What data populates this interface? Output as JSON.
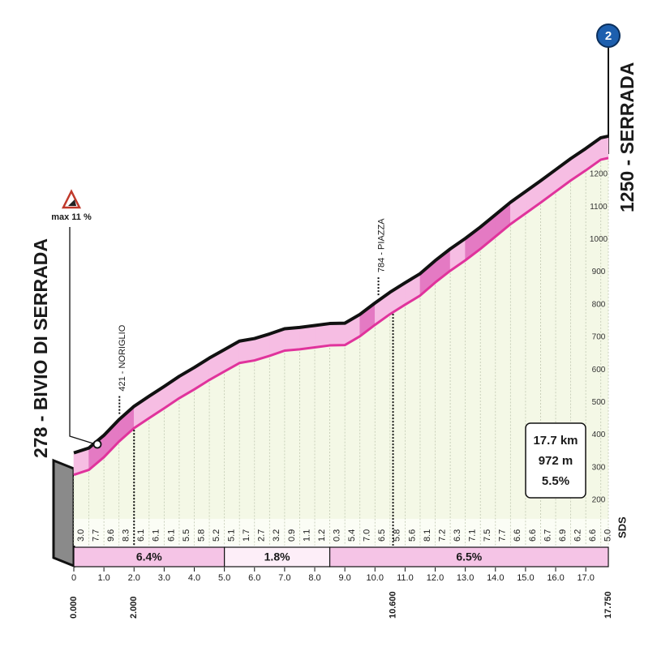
{
  "chart_data": {
    "type": "area",
    "start_label": "278 - BIVIO DI SERRADA",
    "end_label": "1250 - SERRADA",
    "badge": "2",
    "max_gradient_label": "max 11 %",
    "logo": "SDS",
    "x": [
      0,
      0.5,
      1,
      1.5,
      2,
      2.5,
      3,
      3.5,
      4,
      4.5,
      5,
      5.5,
      6,
      6.5,
      7,
      7.5,
      8,
      8.5,
      9,
      9.5,
      10,
      10.5,
      11,
      11.5,
      12,
      12.5,
      13,
      13.5,
      14,
      14.5,
      15,
      15.5,
      16,
      16.5,
      17,
      17.5,
      17.75
    ],
    "values": [
      278,
      293,
      332,
      380,
      421,
      452,
      482,
      513,
      540,
      569,
      595,
      621,
      629,
      643,
      659,
      663,
      669,
      675,
      676,
      703,
      738,
      771,
      800,
      828,
      868,
      904,
      936,
      971,
      1009,
      1047,
      1080,
      1113,
      1147,
      1181,
      1212,
      1245,
      1250
    ],
    "color": "#e0339c",
    "xlim": [
      0,
      17.75
    ],
    "ylim": [
      200,
      1200
    ],
    "yticks": [
      200,
      300,
      400,
      500,
      600,
      700,
      800,
      900,
      1000,
      1100,
      1200
    ],
    "xticks": [
      0,
      {
        "value": 1,
        "label": "1.0"
      },
      {
        "value": 2,
        "label": "2.0"
      },
      {
        "value": 3,
        "label": "3.0"
      },
      {
        "value": 4,
        "label": "4.0"
      },
      {
        "value": 5,
        "label": "5.0"
      },
      {
        "value": 6,
        "label": "6.0"
      },
      {
        "value": 7,
        "label": "7.0"
      },
      {
        "value": 8,
        "label": "8.0"
      },
      {
        "value": 9,
        "label": "9.0"
      },
      {
        "value": 10,
        "label": "10.0"
      },
      {
        "value": 11,
        "label": "11.0"
      },
      {
        "value": 12,
        "label": "12.0"
      },
      {
        "value": 13,
        "label": "13.0"
      },
      {
        "value": 14,
        "label": "14.0"
      },
      {
        "value": 15,
        "label": "15.0"
      },
      {
        "value": 16,
        "label": "16.0"
      },
      {
        "value": 17,
        "label": "17.0"
      }
    ],
    "distance_markers": [
      {
        "value": 0,
        "label": "0.000"
      },
      {
        "value": 2,
        "label": "2.000"
      },
      {
        "value": 10.6,
        "label": "10.600"
      },
      {
        "value": 17.75,
        "label": "17.750"
      }
    ],
    "gradients": [
      {
        "value": 3,
        "label": "3.0"
      },
      7.7,
      9.6,
      8.3,
      6.1,
      6.1,
      6.1,
      5.5,
      5.8,
      5.2,
      5.1,
      1.7,
      2.7,
      3.2,
      0.9,
      1.1,
      1.2,
      0.3,
      5.4,
      {
        "value": 7,
        "label": "7.0"
      },
      6.5,
      5.8,
      5.6,
      8.1,
      7.2,
      6.3,
      7.1,
      7.5,
      7.7,
      6.6,
      6.6,
      6.7,
      6.9,
      6.2,
      6.6,
      {
        "value": 5,
        "label": "5.0"
      }
    ],
    "sections": [
      {
        "from": 0,
        "to": 5,
        "value": 6.4,
        "label": "6.4%",
        "color": "#f5c4e6"
      },
      {
        "from": 5,
        "to": 8.5,
        "value": 1.8,
        "label": "1.8%",
        "color": "#fdeef8"
      },
      {
        "from": 8.5,
        "to": 17.75,
        "value": 6.5,
        "label": "6.5%",
        "color": "#f5c4e6"
      }
    ],
    "waypoints": [
      {
        "km": 2,
        "label": "421 - NORIGLIO"
      },
      {
        "km": 10.6,
        "label": "784 - PIAZZA"
      }
    ],
    "summary": [
      "17.7 km",
      "972 m",
      "5.5%"
    ]
  }
}
